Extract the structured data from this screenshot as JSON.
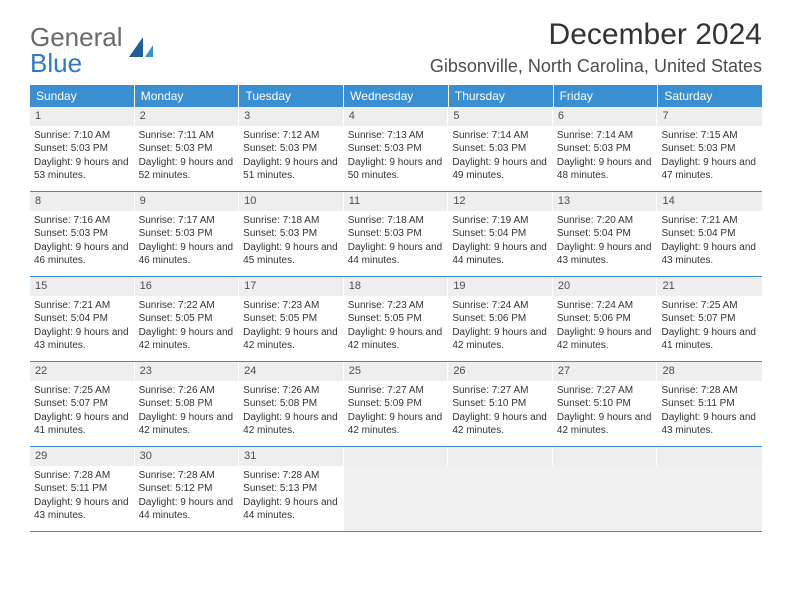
{
  "logo": {
    "part1": "General",
    "part2": "Blue"
  },
  "title": "December 2024",
  "location": "Gibsonville, North Carolina, United States",
  "colors": {
    "header_bg": "#3a8fd0",
    "header_text": "#ffffff",
    "daynum_bg": "#eeeeee",
    "border": "#3a8fd0",
    "text": "#333333",
    "logo_gray": "#6a6a6a",
    "logo_blue": "#2f7bbf",
    "empty_bg": "#f0f0f0"
  },
  "dow": [
    "Sunday",
    "Monday",
    "Tuesday",
    "Wednesday",
    "Thursday",
    "Friday",
    "Saturday"
  ],
  "weeks": [
    [
      {
        "n": "1",
        "sr": "7:10 AM",
        "ss": "5:03 PM",
        "dl": "9 hours and 53 minutes."
      },
      {
        "n": "2",
        "sr": "7:11 AM",
        "ss": "5:03 PM",
        "dl": "9 hours and 52 minutes."
      },
      {
        "n": "3",
        "sr": "7:12 AM",
        "ss": "5:03 PM",
        "dl": "9 hours and 51 minutes."
      },
      {
        "n": "4",
        "sr": "7:13 AM",
        "ss": "5:03 PM",
        "dl": "9 hours and 50 minutes."
      },
      {
        "n": "5",
        "sr": "7:14 AM",
        "ss": "5:03 PM",
        "dl": "9 hours and 49 minutes."
      },
      {
        "n": "6",
        "sr": "7:14 AM",
        "ss": "5:03 PM",
        "dl": "9 hours and 48 minutes."
      },
      {
        "n": "7",
        "sr": "7:15 AM",
        "ss": "5:03 PM",
        "dl": "9 hours and 47 minutes."
      }
    ],
    [
      {
        "n": "8",
        "sr": "7:16 AM",
        "ss": "5:03 PM",
        "dl": "9 hours and 46 minutes."
      },
      {
        "n": "9",
        "sr": "7:17 AM",
        "ss": "5:03 PM",
        "dl": "9 hours and 46 minutes."
      },
      {
        "n": "10",
        "sr": "7:18 AM",
        "ss": "5:03 PM",
        "dl": "9 hours and 45 minutes."
      },
      {
        "n": "11",
        "sr": "7:18 AM",
        "ss": "5:03 PM",
        "dl": "9 hours and 44 minutes."
      },
      {
        "n": "12",
        "sr": "7:19 AM",
        "ss": "5:04 PM",
        "dl": "9 hours and 44 minutes."
      },
      {
        "n": "13",
        "sr": "7:20 AM",
        "ss": "5:04 PM",
        "dl": "9 hours and 43 minutes."
      },
      {
        "n": "14",
        "sr": "7:21 AM",
        "ss": "5:04 PM",
        "dl": "9 hours and 43 minutes."
      }
    ],
    [
      {
        "n": "15",
        "sr": "7:21 AM",
        "ss": "5:04 PM",
        "dl": "9 hours and 43 minutes."
      },
      {
        "n": "16",
        "sr": "7:22 AM",
        "ss": "5:05 PM",
        "dl": "9 hours and 42 minutes."
      },
      {
        "n": "17",
        "sr": "7:23 AM",
        "ss": "5:05 PM",
        "dl": "9 hours and 42 minutes."
      },
      {
        "n": "18",
        "sr": "7:23 AM",
        "ss": "5:05 PM",
        "dl": "9 hours and 42 minutes."
      },
      {
        "n": "19",
        "sr": "7:24 AM",
        "ss": "5:06 PM",
        "dl": "9 hours and 42 minutes."
      },
      {
        "n": "20",
        "sr": "7:24 AM",
        "ss": "5:06 PM",
        "dl": "9 hours and 42 minutes."
      },
      {
        "n": "21",
        "sr": "7:25 AM",
        "ss": "5:07 PM",
        "dl": "9 hours and 41 minutes."
      }
    ],
    [
      {
        "n": "22",
        "sr": "7:25 AM",
        "ss": "5:07 PM",
        "dl": "9 hours and 41 minutes."
      },
      {
        "n": "23",
        "sr": "7:26 AM",
        "ss": "5:08 PM",
        "dl": "9 hours and 42 minutes."
      },
      {
        "n": "24",
        "sr": "7:26 AM",
        "ss": "5:08 PM",
        "dl": "9 hours and 42 minutes."
      },
      {
        "n": "25",
        "sr": "7:27 AM",
        "ss": "5:09 PM",
        "dl": "9 hours and 42 minutes."
      },
      {
        "n": "26",
        "sr": "7:27 AM",
        "ss": "5:10 PM",
        "dl": "9 hours and 42 minutes."
      },
      {
        "n": "27",
        "sr": "7:27 AM",
        "ss": "5:10 PM",
        "dl": "9 hours and 42 minutes."
      },
      {
        "n": "28",
        "sr": "7:28 AM",
        "ss": "5:11 PM",
        "dl": "9 hours and 43 minutes."
      }
    ],
    [
      {
        "n": "29",
        "sr": "7:28 AM",
        "ss": "5:11 PM",
        "dl": "9 hours and 43 minutes."
      },
      {
        "n": "30",
        "sr": "7:28 AM",
        "ss": "5:12 PM",
        "dl": "9 hours and 44 minutes."
      },
      {
        "n": "31",
        "sr": "7:28 AM",
        "ss": "5:13 PM",
        "dl": "9 hours and 44 minutes."
      },
      null,
      null,
      null,
      null
    ]
  ],
  "labels": {
    "sunrise": "Sunrise:",
    "sunset": "Sunset:",
    "daylight": "Daylight:"
  }
}
